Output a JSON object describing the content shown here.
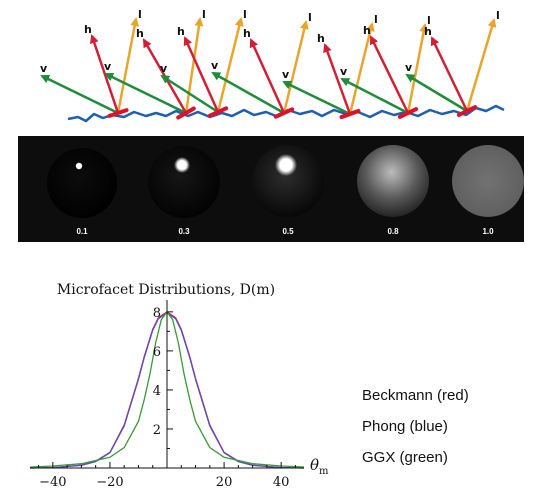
{
  "microfacet_diagram": {
    "vector_labels": {
      "light": "l",
      "half": "h",
      "view": "v"
    },
    "colors": {
      "light": "#e8a52c",
      "half": "#d21f35",
      "view": "#1e8c3a",
      "surface": "#1f5fb0",
      "facet": "#e0102a"
    }
  },
  "sphere_strip": {
    "background": "#0d0d0d",
    "roughness_labels": [
      "0.1",
      "0.3",
      "0.5",
      "0.8",
      "1.0"
    ]
  },
  "chart_data": {
    "type": "line",
    "title": "Microfacet Distributions, D(m)",
    "xlabel": "θm",
    "ylabel": "",
    "xlim": [
      -48,
      48
    ],
    "ylim": [
      0,
      8.3
    ],
    "xticks": [
      -40,
      -20,
      20,
      40
    ],
    "xtick_labels": [
      "−40",
      "−20",
      "20",
      "40"
    ],
    "yticks": [
      2,
      4,
      6,
      8
    ],
    "grid": false,
    "legend_position": "right",
    "series": [
      {
        "name": "Beckmann (red)",
        "color": "#c0205a",
        "x": [
          -48,
          -40,
          -30,
          -25,
          -20,
          -15,
          -10,
          -8,
          -5,
          -3,
          0,
          3,
          5,
          8,
          10,
          15,
          20,
          25,
          30,
          40,
          48
        ],
        "y": [
          0,
          0.02,
          0.15,
          0.35,
          0.8,
          2.2,
          4.6,
          5.7,
          7.1,
          7.7,
          8.0,
          7.7,
          7.1,
          5.7,
          4.6,
          2.2,
          0.8,
          0.35,
          0.15,
          0.02,
          0
        ]
      },
      {
        "name": "Phong (blue)",
        "color": "#5a4fb8",
        "x": [
          -48,
          -40,
          -30,
          -25,
          -20,
          -15,
          -10,
          -8,
          -5,
          -3,
          0,
          3,
          5,
          8,
          10,
          15,
          20,
          25,
          30,
          40,
          48
        ],
        "y": [
          0,
          0.02,
          0.14,
          0.33,
          0.78,
          2.15,
          4.55,
          5.65,
          7.05,
          7.65,
          7.95,
          7.65,
          7.05,
          5.65,
          4.55,
          2.15,
          0.78,
          0.33,
          0.14,
          0.02,
          0
        ]
      },
      {
        "name": "GGX (green)",
        "color": "#3a9a3a",
        "x": [
          -48,
          -40,
          -30,
          -20,
          -15,
          -10,
          -8,
          -6,
          -4,
          -2,
          0,
          2,
          4,
          6,
          8,
          10,
          15,
          20,
          30,
          40,
          48
        ],
        "y": [
          0.05,
          0.1,
          0.22,
          0.55,
          1.05,
          2.4,
          3.5,
          4.8,
          6.4,
          7.6,
          8.0,
          7.6,
          6.4,
          4.8,
          3.5,
          2.4,
          1.05,
          0.55,
          0.22,
          0.1,
          0.05
        ]
      }
    ]
  }
}
